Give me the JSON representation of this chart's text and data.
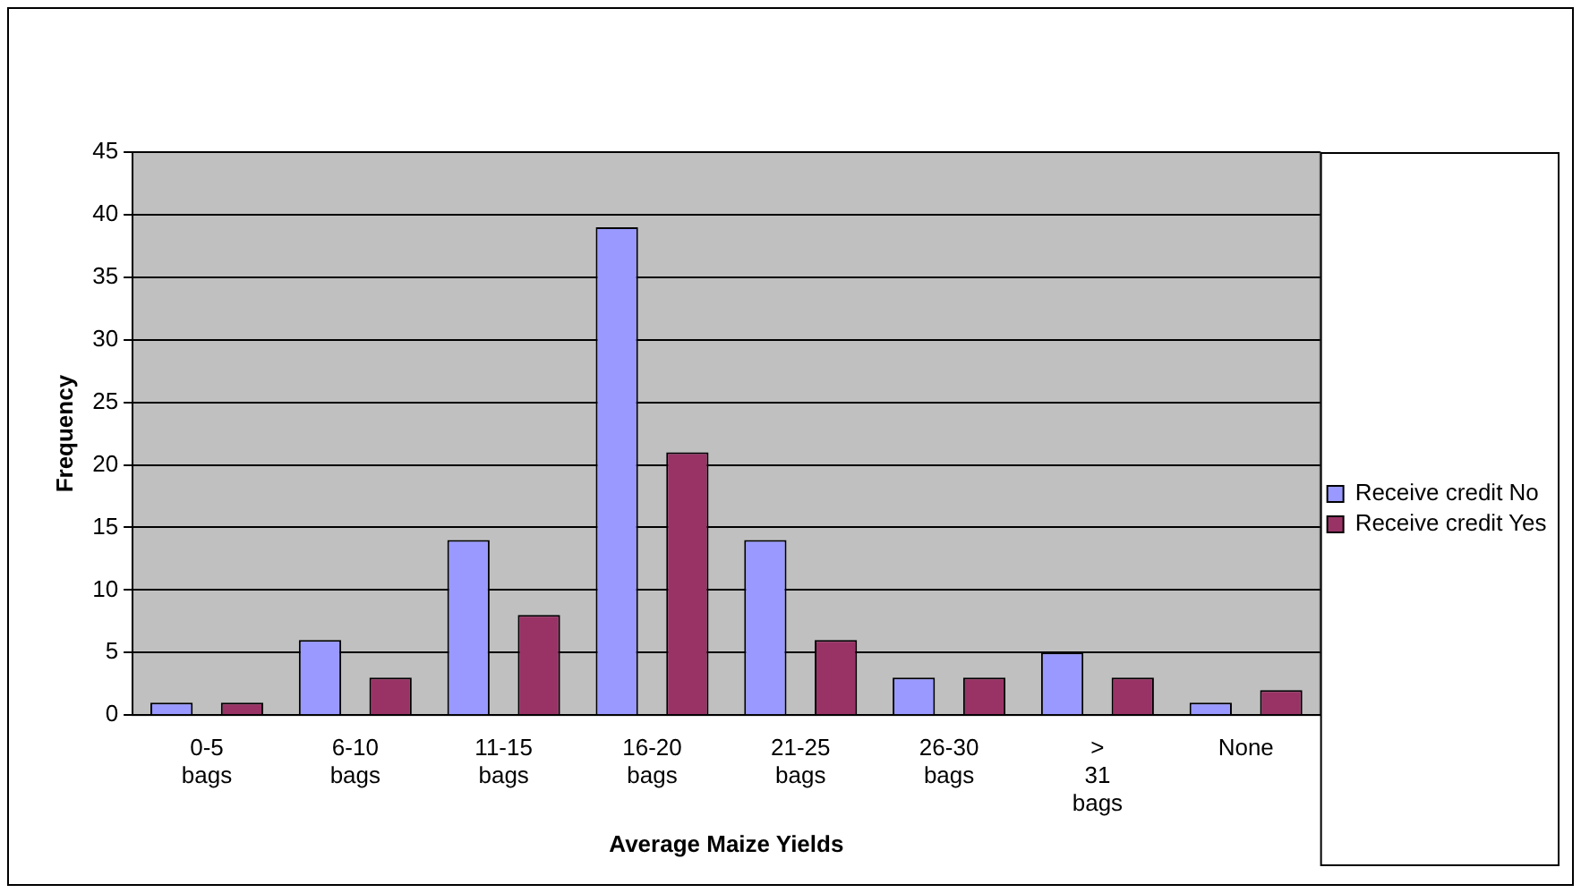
{
  "chart_data": {
    "type": "bar",
    "xlabel": "Average Maize Yields",
    "ylabel": "Frequency",
    "categories": [
      "0-5 bags",
      "6-10 bags",
      "11-15 bags",
      "16-20 bags",
      "21-25 bags",
      "26-30 bags",
      "> 31 bags",
      "None"
    ],
    "series": [
      {
        "name": "Receive credit No",
        "color": "#9999ff",
        "values": [
          1,
          6,
          14,
          39,
          14,
          3,
          5,
          1
        ]
      },
      {
        "name": "Receive credit Yes",
        "color": "#993366",
        "values": [
          1,
          3,
          8,
          21,
          6,
          3,
          3,
          2
        ]
      }
    ],
    "ylim": [
      0,
      45
    ],
    "yticks": [
      0,
      5,
      10,
      15,
      20,
      25,
      30,
      35,
      40,
      45
    ],
    "grid": "y",
    "legend": "right"
  }
}
